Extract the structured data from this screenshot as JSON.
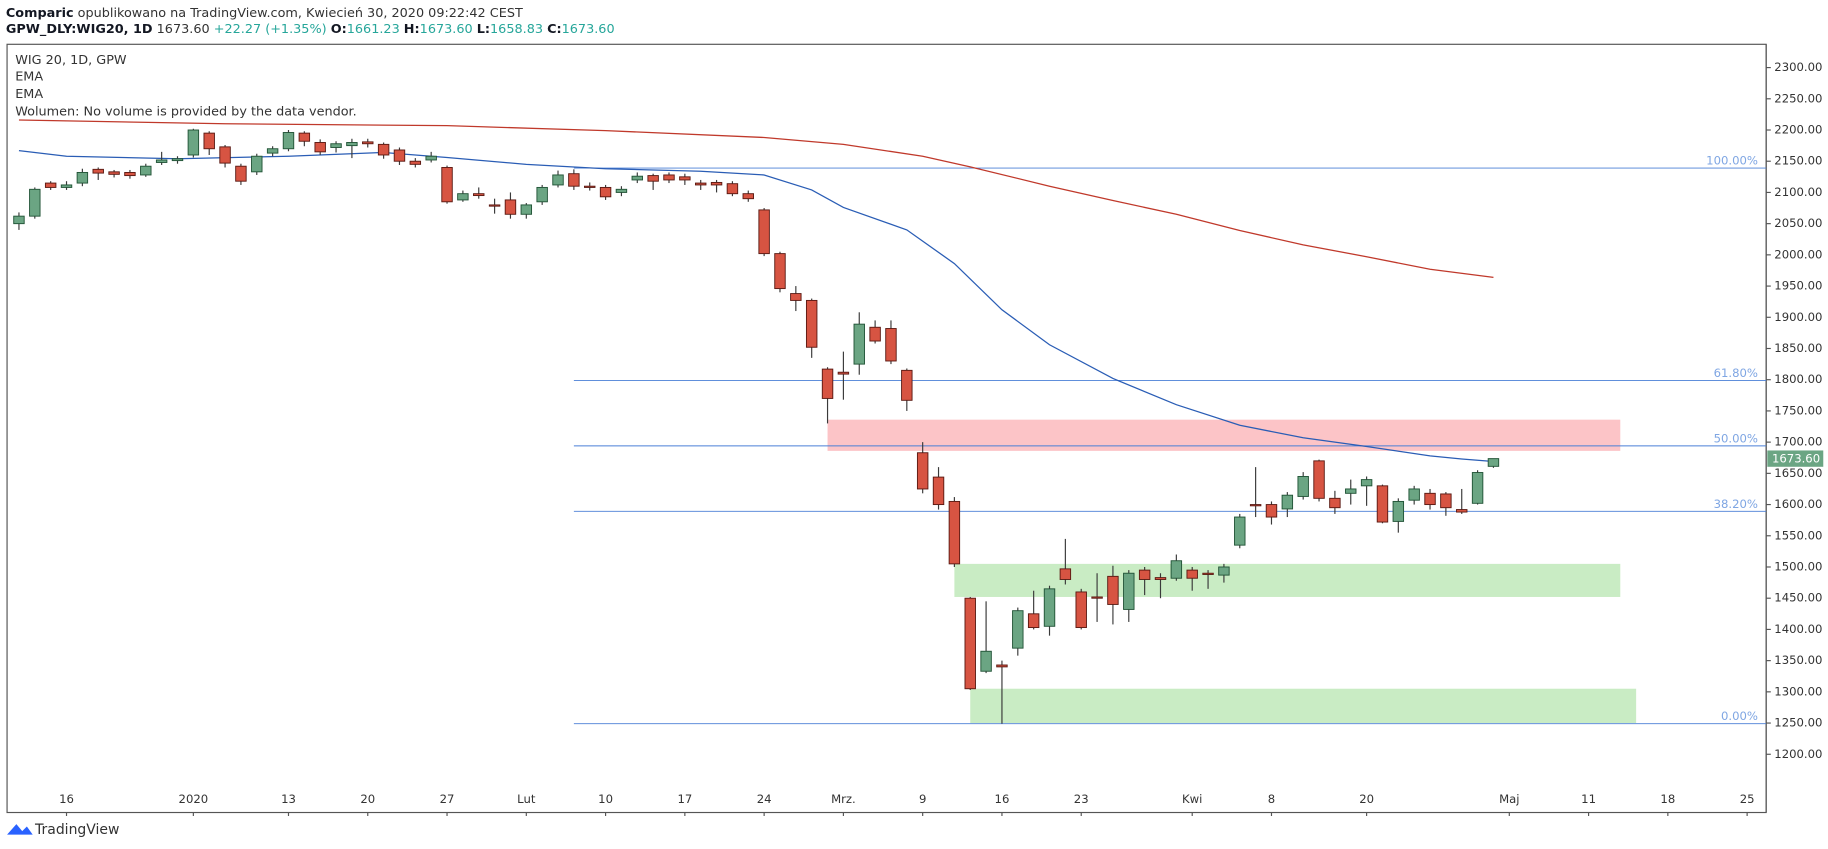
{
  "header": {
    "author": "Comparic",
    "published": "opublikowano na TradingView.com, Kwiecień 30, 2020 09:22:42 CEST",
    "symbol": "GPW_DLY:WIG20, 1D",
    "price": "1673.60",
    "change": "+22.27 (+1.35%)",
    "o_label": "O:",
    "o": "1661.23",
    "h_label": "H:",
    "h": "1673.60",
    "l_label": "L:",
    "l": "1658.83",
    "c_label": "C:",
    "c": "1673.60"
  },
  "legend": {
    "instrument": "WIG 20, 1D, GPW",
    "volume": "Wolumen: No volume is provided by the data vendor."
  },
  "footer": {
    "brand": "TradingView"
  },
  "chart_data": {
    "type": "candlestick",
    "up_color": "#6ba583",
    "down_color": "#d75442",
    "candles": {
      "x": [
        -3,
        -2,
        -1,
        0,
        1,
        2,
        3,
        4,
        5,
        6,
        7,
        8,
        9,
        10,
        11,
        12,
        13,
        14,
        15,
        16,
        17,
        18,
        19,
        20,
        21,
        22,
        23,
        24,
        25,
        26,
        27,
        28,
        29,
        30,
        31,
        32,
        33,
        34,
        35,
        36,
        37,
        38,
        39,
        40,
        41,
        42,
        43,
        44,
        45,
        46,
        47,
        48,
        49,
        50,
        51,
        52,
        53,
        54,
        55,
        56,
        57,
        58,
        59,
        60,
        61,
        62,
        63,
        64,
        65,
        66,
        67,
        68,
        69,
        70,
        71,
        72,
        73,
        74,
        75,
        76,
        77,
        78,
        79,
        80,
        81,
        82,
        83,
        84,
        85,
        86,
        87,
        88,
        89,
        90
      ],
      "open": [
        2050,
        2062,
        2115,
        2108,
        2115,
        2137,
        2133,
        2132,
        2128,
        2148,
        2151,
        2160,
        2195,
        2173,
        2142,
        2133,
        2163,
        2170,
        2195,
        2180,
        2172,
        2175,
        2181,
        2177,
        2168,
        2150,
        2152,
        2140,
        2088,
        2098,
        2080,
        2088,
        2065,
        2085,
        2112,
        2130,
        2110,
        2108,
        2100,
        2120,
        2127,
        2128,
        2125,
        2115,
        2116,
        2114,
        2098,
        2072,
        2002,
        1938,
        1927,
        1817,
        1812,
        1825,
        1884,
        1882,
        1815,
        1683,
        1644,
        1605,
        1450,
        1333,
        1343,
        1370,
        1425,
        1405,
        1497,
        1460,
        1452,
        1485,
        1432,
        1495,
        1483,
        1482,
        1495,
        1490,
        1487,
        1535,
        1600,
        1600,
        1593,
        1613,
        1670,
        1610,
        1618,
        1630,
        1630,
        1573,
        1607,
        1618,
        1617,
        1592,
        1602,
        1661.23
      ],
      "high": [
        2068,
        2108,
        2118,
        2118,
        2138,
        2140,
        2136,
        2136,
        2146,
        2165,
        2158,
        2202,
        2198,
        2176,
        2146,
        2162,
        2174,
        2200,
        2198,
        2185,
        2182,
        2186,
        2186,
        2180,
        2172,
        2155,
        2165,
        2143,
        2103,
        2108,
        2090,
        2100,
        2083,
        2112,
        2135,
        2137,
        2116,
        2112,
        2110,
        2132,
        2130,
        2132,
        2130,
        2120,
        2120,
        2118,
        2103,
        2075,
        2005,
        1950,
        1930,
        1820,
        1845,
        1908,
        1895,
        1895,
        1818,
        1700,
        1660,
        1612,
        1452,
        1445,
        1350,
        1435,
        1462,
        1470,
        1545,
        1465,
        1490,
        1502,
        1495,
        1500,
        1490,
        1520,
        1500,
        1495,
        1505,
        1585,
        1660,
        1605,
        1620,
        1652,
        1672,
        1622,
        1640,
        1645,
        1632,
        1610,
        1630,
        1625,
        1620,
        1625,
        1655,
        1673.6
      ],
      "low": [
        2040,
        2058,
        2104,
        2104,
        2110,
        2120,
        2124,
        2122,
        2125,
        2144,
        2146,
        2156,
        2160,
        2140,
        2112,
        2128,
        2158,
        2166,
        2174,
        2160,
        2164,
        2155,
        2172,
        2154,
        2144,
        2140,
        2148,
        2082,
        2085,
        2090,
        2066,
        2058,
        2058,
        2080,
        2108,
        2104,
        2103,
        2088,
        2094,
        2115,
        2104,
        2115,
        2112,
        2104,
        2100,
        2094,
        2085,
        1998,
        1940,
        1910,
        1835,
        1730,
        1768,
        1808,
        1858,
        1825,
        1750,
        1618,
        1592,
        1500,
        1303,
        1330,
        1249,
        1358,
        1400,
        1390,
        1472,
        1400,
        1412,
        1408,
        1412,
        1455,
        1450,
        1478,
        1462,
        1465,
        1475,
        1530,
        1580,
        1568,
        1580,
        1608,
        1605,
        1585,
        1600,
        1598,
        1570,
        1555,
        1600,
        1592,
        1582,
        1585,
        1600,
        1658.83
      ],
      "close": [
        2062,
        2105,
        2108,
        2112,
        2132,
        2131,
        2129,
        2127,
        2142,
        2152,
        2154,
        2200,
        2170,
        2147,
        2118,
        2158,
        2170,
        2196,
        2182,
        2165,
        2178,
        2180,
        2178,
        2160,
        2150,
        2145,
        2158,
        2085,
        2098,
        2095,
        2078,
        2065,
        2080,
        2108,
        2128,
        2110,
        2108,
        2093,
        2105,
        2126,
        2118,
        2120,
        2120,
        2112,
        2112,
        2098,
        2090,
        2002,
        1946,
        1927,
        1852,
        1770,
        1809,
        1889,
        1862,
        1830,
        1767,
        1625,
        1600,
        1505,
        1305,
        1365,
        1340,
        1430,
        1403,
        1465,
        1480,
        1403,
        1450,
        1440,
        1490,
        1480,
        1480,
        1510,
        1482,
        1488,
        1500,
        1580,
        1598,
        1580,
        1615,
        1645,
        1610,
        1595,
        1625,
        1640,
        1572,
        1605,
        1625,
        1600,
        1595,
        1588,
        1651.33,
        1673.6
      ]
    },
    "series": [
      {
        "name": "EMA",
        "color": "#2a5db5",
        "x": [
          -3,
          0,
          7,
          14,
          20,
          24,
          29,
          34,
          40,
          44,
          47,
          49,
          53,
          56,
          59,
          62,
          66,
          70,
          74,
          78,
          82,
          86,
          88,
          90
        ],
        "values": [
          2167,
          2158,
          2154,
          2158,
          2164,
          2156,
          2145,
          2138,
          2134,
          2128,
          2104,
          2076,
          2040,
          1986,
          1912,
          1856,
          1802,
          1760,
          1727,
          1707,
          1693,
          1678,
          1673,
          1669
        ]
      },
      {
        "name": "EMA",
        "color": "#c0392b",
        "x": [
          -3,
          10,
          24,
          34,
          44,
          49,
          54,
          57,
          62,
          66,
          70,
          74,
          78,
          82,
          86,
          90
        ],
        "values": [
          2216,
          2210,
          2207,
          2199,
          2188,
          2177,
          2158,
          2141,
          2110,
          2087,
          2065,
          2039,
          2016,
          1997,
          1977,
          1964
        ]
      }
    ],
    "fib": {
      "start_x": 32,
      "color": "#4a7fd6",
      "levels": [
        {
          "value": 2139,
          "label": "100.00%"
        },
        {
          "value": 1798.8,
          "label": "61.80%"
        },
        {
          "value": 1694,
          "label": "50.00%"
        },
        {
          "value": 1589.2,
          "label": "38.20%"
        },
        {
          "value": 1249,
          "label": "0.00%"
        }
      ]
    },
    "zones": [
      {
        "from": 48,
        "to": 98,
        "low": 1686,
        "high": 1736,
        "color": "#fcc4c7"
      },
      {
        "from": 56,
        "to": 98,
        "low": 1452,
        "high": 1505,
        "color": "#c9ecc4"
      },
      {
        "from": 57,
        "to": 99,
        "low": 1250,
        "high": 1305,
        "color": "#c9ecc4"
      }
    ],
    "last_price": {
      "value": 1673.6,
      "label": "1673.60"
    },
    "xlim": [
      -3.75,
      107.2
    ],
    "ylim": [
      1106.7,
      2337.3
    ],
    "xticks": [
      {
        "value": 0,
        "label": "16"
      },
      {
        "value": 8,
        "label": "2020"
      },
      {
        "value": 14,
        "label": "13"
      },
      {
        "value": 19,
        "label": "20"
      },
      {
        "value": 24,
        "label": "27"
      },
      {
        "value": 29,
        "label": "Lut"
      },
      {
        "value": 34,
        "label": "10"
      },
      {
        "value": 39,
        "label": "17"
      },
      {
        "value": 44,
        "label": "24"
      },
      {
        "value": 49,
        "label": "Mrz."
      },
      {
        "value": 54,
        "label": "9"
      },
      {
        "value": 59,
        "label": "16"
      },
      {
        "value": 64,
        "label": "23"
      },
      {
        "value": 71,
        "label": "Kwi"
      },
      {
        "value": 76,
        "label": "8"
      },
      {
        "value": 82,
        "label": "20"
      },
      {
        "value": 91,
        "label": "Maj"
      },
      {
        "value": 96,
        "label": "11"
      },
      {
        "value": 101,
        "label": "18"
      },
      {
        "value": 106,
        "label": "25"
      }
    ],
    "yticks": [
      {
        "value": 1200,
        "label": "1200.00"
      },
      {
        "value": 1250,
        "label": "1250.00"
      },
      {
        "value": 1300,
        "label": "1300.00"
      },
      {
        "value": 1350,
        "label": "1350.00"
      },
      {
        "value": 1400,
        "label": "1400.00"
      },
      {
        "value": 1450,
        "label": "1450.00"
      },
      {
        "value": 1500,
        "label": "1500.00"
      },
      {
        "value": 1550,
        "label": "1550.00"
      },
      {
        "value": 1600,
        "label": "1600.00"
      },
      {
        "value": 1650,
        "label": "1650.00"
      },
      {
        "value": 1700,
        "label": "1700.00"
      },
      {
        "value": 1750,
        "label": "1750.00"
      },
      {
        "value": 1800,
        "label": "1800.00"
      },
      {
        "value": 1850,
        "label": "1850.00"
      },
      {
        "value": 1900,
        "label": "1900.00"
      },
      {
        "value": 1950,
        "label": "1950.00"
      },
      {
        "value": 2000,
        "label": "2000.00"
      },
      {
        "value": 2050,
        "label": "2050.00"
      },
      {
        "value": 2100,
        "label": "2100.00"
      },
      {
        "value": 2150,
        "label": "2150.00"
      },
      {
        "value": 2200,
        "label": "2200.00"
      },
      {
        "value": 2250,
        "label": "2250.00"
      },
      {
        "value": 2300,
        "label": "2300.00"
      }
    ]
  }
}
